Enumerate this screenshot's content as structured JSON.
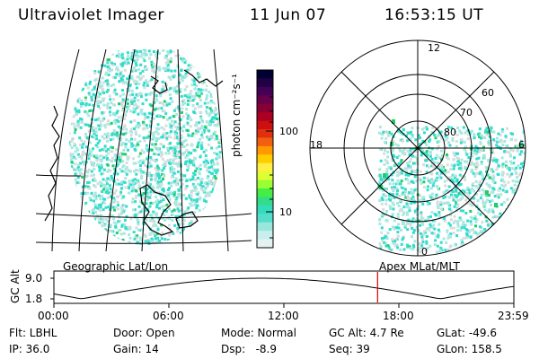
{
  "header": {
    "title": "Ultraviolet Imager",
    "date": "11 Jun 07",
    "time": "16:53:15 UT"
  },
  "colorbar": {
    "unit_label": "photon cm⁻²s⁻¹",
    "ticks": [
      "100",
      "10"
    ],
    "colors": [
      "#000033",
      "#220044",
      "#440055",
      "#66004d",
      "#880033",
      "#aa0022",
      "#cc1010",
      "#e03010",
      "#f06010",
      "#ff9900",
      "#ffcc00",
      "#ffee44",
      "#ddff33",
      "#99ff33",
      "#44ee44",
      "#33dd88",
      "#33ddbb",
      "#55ddcc",
      "#99e6dd",
      "#c8eeee",
      "#e4f2f2"
    ]
  },
  "left_map": {
    "caption": "Geographic Lat/Lon"
  },
  "right_map": {
    "caption": "Apex MLat/MLT",
    "mlt_labels": {
      "top": "12",
      "left": "18",
      "right": "6",
      "bottom": "0"
    },
    "lat_labels": [
      "60",
      "70",
      "80"
    ]
  },
  "altitude_plot": {
    "ylabel": "GC Alt",
    "yticks": [
      "9.0",
      "1.8"
    ],
    "xticks": [
      "00:00",
      "06:00",
      "12:00",
      "18:00",
      "23:59"
    ],
    "marker_time_hours": 16.89,
    "marker_color": "#dd0000"
  },
  "info": {
    "row1": [
      "Flt: LBHL",
      "Door: Open",
      "Mode: Normal",
      "GC Alt: 4.7 Re",
      "GLat: -49.6"
    ],
    "row2": [
      "IP: 36.0",
      "Gain: 14",
      "Dsp:   -8.9",
      "Seq: 39",
      "GLon: 158.5"
    ]
  },
  "colors": {
    "speckle_main": "#33ddcc",
    "speckle_light": "#a8e8e0",
    "speckle_grey": "#d8dcdc",
    "speckle_green": "#22cc66"
  }
}
